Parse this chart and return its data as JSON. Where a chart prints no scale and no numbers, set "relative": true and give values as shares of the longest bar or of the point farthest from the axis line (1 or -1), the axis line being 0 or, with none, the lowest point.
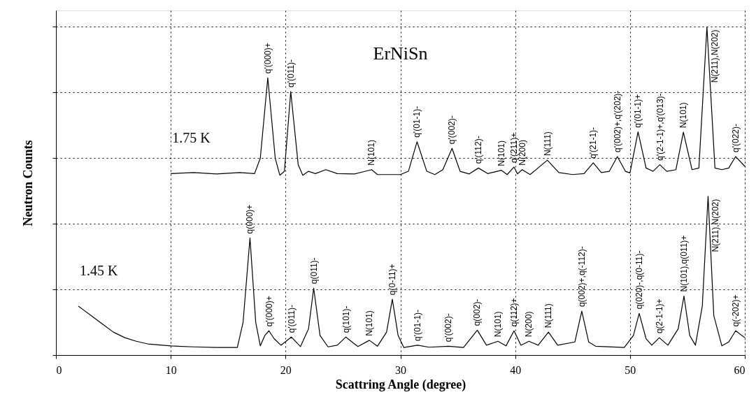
{
  "chart_data": {
    "type": "line",
    "title": "ErNiSn",
    "xlabel": "Scattring Angle (degree)",
    "ylabel": "Neutron Counts",
    "relative": true,
    "xlim": [
      0,
      60
    ],
    "xticks": [
      0,
      10,
      20,
      30,
      40,
      50,
      60
    ],
    "grid": true,
    "marker": "none",
    "line_style": "solid",
    "series": [
      {
        "name": "1.75 K",
        "color": "#000000",
        "x": [
          10,
          12,
          14,
          16,
          17.3,
          17.8,
          18.45,
          19.1,
          19.5,
          19.9,
          20.45,
          21.1,
          21.5,
          22,
          22.6,
          23.5,
          24.5,
          26,
          27.5,
          28,
          30,
          30.7,
          31.45,
          32.3,
          33,
          33.7,
          34.5,
          35.2,
          36,
          36.8,
          37.6,
          38.8,
          39.3,
          39.9,
          40.2,
          40.6,
          41.3,
          42.8,
          43.8,
          45,
          46,
          46.8,
          47.5,
          48.2,
          48.9,
          49.6,
          50,
          50.7,
          51.4,
          52,
          52.6,
          53.2,
          54,
          54.65,
          55.4,
          56,
          56.7,
          57.4,
          58,
          58.6,
          59.2,
          60
        ],
        "values": [
          0.553,
          0.556,
          0.552,
          0.556,
          0.553,
          0.6,
          0.845,
          0.6,
          0.548,
          0.56,
          0.803,
          0.58,
          0.548,
          0.56,
          0.553,
          0.565,
          0.553,
          0.552,
          0.565,
          0.55,
          0.55,
          0.56,
          0.65,
          0.56,
          0.55,
          0.565,
          0.63,
          0.56,
          0.552,
          0.57,
          0.553,
          0.563,
          0.55,
          0.573,
          0.552,
          0.565,
          0.55,
          0.594,
          0.556,
          0.55,
          0.553,
          0.586,
          0.556,
          0.56,
          0.605,
          0.56,
          0.555,
          0.68,
          0.57,
          0.56,
          0.58,
          0.56,
          0.565,
          0.679,
          0.565,
          0.57,
          1.0,
          0.57,
          0.565,
          0.57,
          0.605,
          0.575
        ]
      },
      {
        "name": "1.45 K",
        "color": "#000000",
        "x": [
          1.95,
          2.5,
          3,
          4,
          5,
          6,
          7,
          8,
          10,
          12,
          14,
          15.8,
          16.3,
          16.9,
          17.4,
          17.8,
          18.2,
          18.55,
          19,
          19.6,
          20.5,
          21.3,
          22,
          22.45,
          23,
          23.7,
          24.5,
          25.25,
          26.3,
          27.3,
          28,
          28.8,
          29.3,
          29.8,
          30.3,
          31.5,
          32.5,
          34.2,
          35.5,
          36.7,
          37.5,
          38.5,
          39.2,
          39.9,
          40.5,
          41.2,
          42,
          42.9,
          43.7,
          45.2,
          45.8,
          46.4,
          47,
          49.5,
          50.3,
          50.8,
          51.4,
          51.9,
          52.55,
          53.3,
          54.2,
          54.7,
          55.2,
          55.7,
          56.3,
          56.8,
          57.3,
          58,
          58.6,
          59.2,
          60
        ],
        "values": [
          0.149,
          0.135,
          0.122,
          0.096,
          0.07,
          0.053,
          0.042,
          0.034,
          0.028,
          0.025,
          0.023,
          0.023,
          0.1,
          0.357,
          0.1,
          0.028,
          0.06,
          0.074,
          0.05,
          0.03,
          0.055,
          0.026,
          0.08,
          0.204,
          0.06,
          0.025,
          0.03,
          0.055,
          0.026,
          0.045,
          0.027,
          0.07,
          0.17,
          0.06,
          0.023,
          0.03,
          0.024,
          0.027,
          0.023,
          0.076,
          0.03,
          0.042,
          0.028,
          0.074,
          0.03,
          0.042,
          0.03,
          0.07,
          0.03,
          0.04,
          0.134,
          0.04,
          0.027,
          0.023,
          0.06,
          0.127,
          0.05,
          0.03,
          0.053,
          0.03,
          0.08,
          0.18,
          0.06,
          0.03,
          0.15,
          0.484,
          0.12,
          0.028,
          0.04,
          0.074,
          0.053
        ]
      }
    ],
    "annotations": [
      {
        "text": "q'(000)+",
        "x": 18.45,
        "y": 0.845
      },
      {
        "text": "q'(011)-",
        "x": 20.45,
        "y": 0.803
      },
      {
        "text": "N(101)",
        "x": 27.5,
        "y": 0.565
      },
      {
        "text": "q'(01-1)-",
        "x": 31.45,
        "y": 0.65
      },
      {
        "text": "q'(002)-",
        "x": 34.5,
        "y": 0.63
      },
      {
        "text": "q'(112)-",
        "x": 36.8,
        "y": 0.57
      },
      {
        "text": "N(101)",
        "x": 38.8,
        "y": 0.563
      },
      {
        "text": "q'(211)+",
        "x": 39.9,
        "y": 0.573
      },
      {
        "text": "N(200)",
        "x": 40.6,
        "y": 0.565
      },
      {
        "text": "N(111)",
        "x": 42.8,
        "y": 0.594
      },
      {
        "text": "q'(21-1)-",
        "x": 46.8,
        "y": 0.586
      },
      {
        "text": "q'(002)+,q'(202)-",
        "x": 48.9,
        "y": 0.605
      },
      {
        "text": "q'(01-1)+",
        "x": 50.7,
        "y": 0.68
      },
      {
        "text": "q'(2-1-1)+,q'(013)-",
        "x": 52.6,
        "y": 0.58
      },
      {
        "text": "N(101)",
        "x": 54.65,
        "y": 0.679
      },
      {
        "text": "N(211),N(202)",
        "x": 56.7,
        "y": 1.0
      },
      {
        "text": "q'(022)-",
        "x": 59.2,
        "y": 0.605
      },
      {
        "text": "q(000)+",
        "x": 16.9,
        "y": 0.357
      },
      {
        "text": "q'(000)+",
        "x": 18.55,
        "y": 0.074
      },
      {
        "text": "q'(011)-",
        "x": 20.5,
        "y": 0.055
      },
      {
        "text": "q(011)-",
        "x": 22.45,
        "y": 0.204
      },
      {
        "text": "q(101)-",
        "x": 25.25,
        "y": 0.055
      },
      {
        "text": "N(101)",
        "x": 27.3,
        "y": 0.045
      },
      {
        "text": "q(0-11)+",
        "x": 29.3,
        "y": 0.17
      },
      {
        "text": "q'(01-1)-",
        "x": 31.5,
        "y": 0.03
      },
      {
        "text": "q'(002)-",
        "x": 34.2,
        "y": 0.027
      },
      {
        "text": "q(002)-",
        "x": 36.7,
        "y": 0.076
      },
      {
        "text": "N(101)",
        "x": 38.5,
        "y": 0.042
      },
      {
        "text": "q(112)+",
        "x": 39.9,
        "y": 0.074
      },
      {
        "text": "N(200)",
        "x": 41.2,
        "y": 0.042
      },
      {
        "text": "N(111)",
        "x": 42.9,
        "y": 0.07
      },
      {
        "text": "q(002)+,q(-112)-",
        "x": 45.8,
        "y": 0.134
      },
      {
        "text": "q(020)-,q(0-11)-",
        "x": 50.8,
        "y": 0.127
      },
      {
        "text": "q(2-1-1)+",
        "x": 52.55,
        "y": 0.053
      },
      {
        "text": "N(101),q(011)+",
        "x": 54.7,
        "y": 0.18
      },
      {
        "text": "N(211),N(202)",
        "x": 56.8,
        "y": 0.484
      },
      {
        "text": "q(-202)+",
        "x": 59.2,
        "y": 0.074
      }
    ]
  }
}
